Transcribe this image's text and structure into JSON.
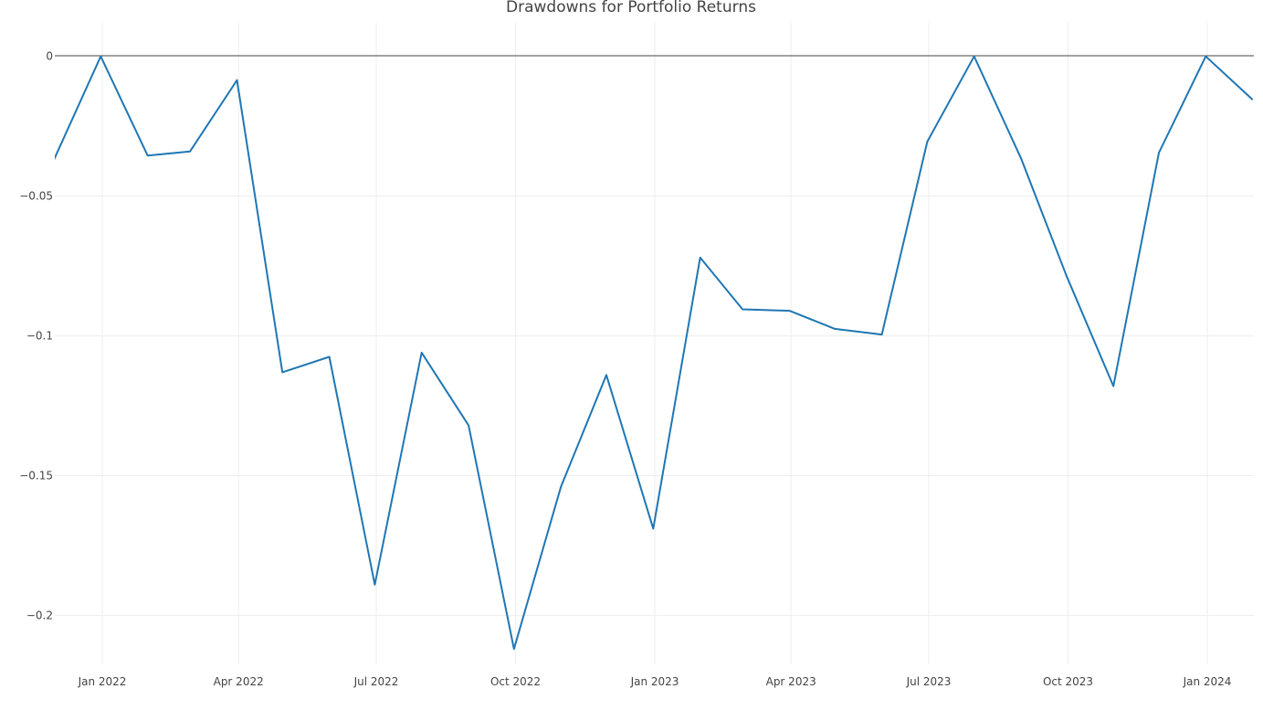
{
  "chart_data": {
    "type": "line",
    "title": "Drawdowns for Portfolio Returns",
    "xlabel": "",
    "ylabel": "",
    "ylim": [
      -0.2175,
      0.012
    ],
    "x_tick_labels": [
      "Jan 2022",
      "Apr 2022",
      "Jul 2022",
      "Oct 2022",
      "Jan 2023",
      "Apr 2023",
      "Jul 2023",
      "Oct 2023",
      "Jan 2024"
    ],
    "y_ticks": [
      0,
      -0.05,
      -0.1,
      -0.15,
      -0.2
    ],
    "y_tick_labels": [
      "0",
      "−0.05",
      "−0.1",
      "−0.15",
      "−0.2"
    ],
    "grid": true,
    "series": [
      {
        "color": "#1f77b4",
        "x": [
          "2021-11-30",
          "2021-12-31",
          "2022-01-31",
          "2022-02-28",
          "2022-03-31",
          "2022-04-30",
          "2022-05-31",
          "2022-06-30",
          "2022-07-31",
          "2022-08-31",
          "2022-09-30",
          "2022-10-31",
          "2022-11-30",
          "2022-12-31",
          "2023-01-31",
          "2023-02-28",
          "2023-03-31",
          "2023-04-30",
          "2023-05-31",
          "2023-06-30",
          "2023-07-31",
          "2023-08-31",
          "2023-09-30",
          "2023-10-31",
          "2023-11-30",
          "2023-12-31",
          "2024-01-31"
        ],
        "values": [
          -0.037,
          0.0,
          -0.0355,
          -0.034,
          -0.0085,
          -0.113,
          -0.1075,
          -0.189,
          -0.106,
          -0.132,
          -0.212,
          -0.154,
          -0.114,
          -0.169,
          -0.072,
          -0.0905,
          -0.091,
          -0.0975,
          -0.0995,
          -0.0305,
          0.0,
          -0.0365,
          -0.0785,
          -0.118,
          -0.0345,
          0.0,
          -0.0155
        ]
      }
    ]
  }
}
